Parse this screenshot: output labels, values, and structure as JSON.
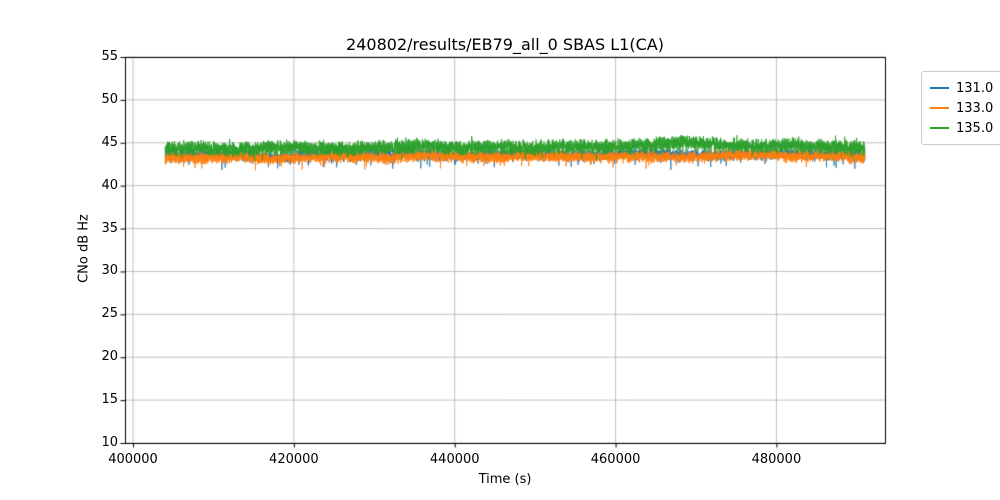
{
  "chart_data": {
    "type": "line",
    "title": "240802/results/EB79_all_0 SBAS L1(CA)",
    "xlabel": "Time (s)",
    "ylabel": "CNo dB Hz",
    "xlim": [
      399000,
      493500
    ],
    "ylim": [
      10,
      55
    ],
    "xticks": [
      400000,
      420000,
      440000,
      460000,
      480000
    ],
    "yticks": [
      10,
      15,
      20,
      25,
      30,
      35,
      40,
      45,
      50,
      55
    ],
    "grid": true,
    "grid_color": "#b0b0b0",
    "spine_color": "#000000",
    "legend_position": "upper-right-outside",
    "x_start": 404000,
    "x_end": 491000,
    "samples_per_series": 6000,
    "series": [
      {
        "name": "131.0",
        "color": "#1f77b4",
        "seed": 3,
        "noise": 0.75,
        "spike_down": 1.4,
        "spike_up": 0.4,
        "baseline": [
          43.7,
          43.6,
          43.5,
          43.3,
          43.6,
          43.5,
          43.7,
          43.6,
          43.5,
          43.6,
          43.7,
          43.5,
          43.6,
          43.7,
          43.6,
          43.5,
          43.6,
          43.7,
          43.6,
          43.5
        ]
      },
      {
        "name": "133.0",
        "color": "#ff7f0e",
        "seed": 13,
        "noise": 0.8,
        "spike_down": 1.1,
        "spike_up": 0.4,
        "baseline": [
          43.3,
          43.2,
          43.4,
          43.1,
          43.3,
          43.4,
          43.2,
          43.5,
          43.4,
          43.3,
          43.5,
          43.4,
          43.3,
          43.4,
          43.3,
          43.5,
          43.6,
          43.4,
          43.5,
          43.3
        ]
      },
      {
        "name": "135.0",
        "color": "#2ca02c",
        "seed": 7,
        "noise": 1.0,
        "spike_down": 0.9,
        "spike_up": 0.8,
        "baseline": [
          44.3,
          44.4,
          44.2,
          44.5,
          44.4,
          44.3,
          44.5,
          44.6,
          44.4,
          44.5,
          44.4,
          44.6,
          44.5,
          44.7,
          45.0,
          44.8,
          44.6,
          44.7,
          44.5,
          44.4
        ]
      }
    ]
  }
}
